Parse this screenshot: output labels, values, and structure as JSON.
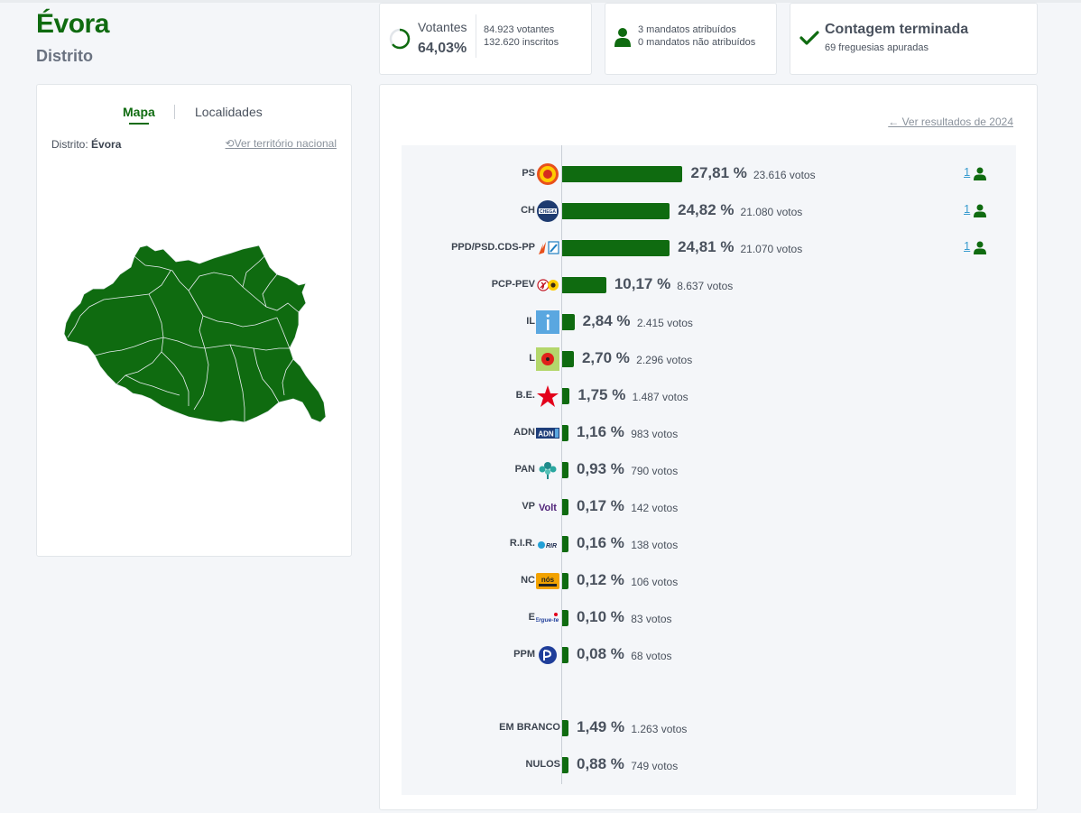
{
  "header": {
    "title": "Évora",
    "subtitle": "Distrito"
  },
  "turnout": {
    "label": "Votantes",
    "percent": "64,03%",
    "percent_value": 64.03,
    "voters": "84.923 votantes",
    "registered": "132.620 inscritos"
  },
  "mandates": {
    "assigned": "3 mandatos atribuídos",
    "unassigned": "0 mandatos não atribuídos"
  },
  "count": {
    "title": "Contagem terminada",
    "subtitle": "69 freguesias apuradas"
  },
  "map_panel": {
    "tabs": [
      "Mapa",
      "Localidades"
    ],
    "active_tab": "Mapa",
    "district_label": "Distrito:",
    "district_value": "Évora",
    "national_link": "Ver território nacional"
  },
  "results": {
    "previous_link": "Ver resultados de 2024",
    "bar_color": "#0f6b10",
    "parties": [
      {
        "name": "PS",
        "pct": "27,81 %",
        "value": 27.81,
        "votes": "23.616 votos",
        "seats": "1",
        "logo": "ps-fist-rose-icon"
      },
      {
        "name": "CH",
        "pct": "24,82 %",
        "value": 24.82,
        "votes": "21.080 votos",
        "seats": "1",
        "logo": "chega-logo-icon"
      },
      {
        "name": "PPD/PSD.CDS-PP",
        "pct": "24,81 %",
        "value": 24.81,
        "votes": "21.070 votos",
        "seats": "1",
        "logo": "ad-coalition-logo-icon"
      },
      {
        "name": "PCP-PEV",
        "pct": "10,17 %",
        "value": 10.17,
        "votes": "8.637 votos",
        "seats": "",
        "logo": "cdu-hammer-sickle-sunflower-icon"
      },
      {
        "name": "IL",
        "pct": "2,84 %",
        "value": 2.84,
        "votes": "2.415 votos",
        "seats": "",
        "logo": "il-logo-icon"
      },
      {
        "name": "L",
        "pct": "2,70 %",
        "value": 2.7,
        "votes": "2.296 votos",
        "seats": "",
        "logo": "livre-poppy-icon"
      },
      {
        "name": "B.E.",
        "pct": "1,75 %",
        "value": 1.75,
        "votes": "1.487 votos",
        "seats": "",
        "logo": "be-star-icon"
      },
      {
        "name": "ADN",
        "pct": "1,16 %",
        "value": 1.16,
        "votes": "983 votos",
        "seats": "",
        "logo": "adn-logo-icon"
      },
      {
        "name": "PAN",
        "pct": "0,93 %",
        "value": 0.93,
        "votes": "790 votos",
        "seats": "",
        "logo": "pan-tree-icon"
      },
      {
        "name": "VP",
        "pct": "0,17 %",
        "value": 0.17,
        "votes": "142 votos",
        "seats": "",
        "logo": "volt-logo-icon"
      },
      {
        "name": "R.I.R.",
        "pct": "0,16 %",
        "value": 0.16,
        "votes": "138 votos",
        "seats": "",
        "logo": "rir-logo-icon"
      },
      {
        "name": "NC",
        "pct": "0,12 %",
        "value": 0.12,
        "votes": "106 votos",
        "seats": "",
        "logo": "nc-logo-icon"
      },
      {
        "name": "E",
        "pct": "0,10 %",
        "value": 0.1,
        "votes": "83 votos",
        "seats": "",
        "logo": "ergue-te-logo-icon"
      },
      {
        "name": "PPM",
        "pct": "0,08 %",
        "value": 0.08,
        "votes": "68 votos",
        "seats": "",
        "logo": "ppm-logo-icon"
      }
    ],
    "others": [
      {
        "name": "EM BRANCO",
        "pct": "1,49 %",
        "value": 1.49,
        "votes": "1.263 votos"
      },
      {
        "name": "NULOS",
        "pct": "0,88 %",
        "value": 0.88,
        "votes": "749 votos"
      }
    ]
  }
}
